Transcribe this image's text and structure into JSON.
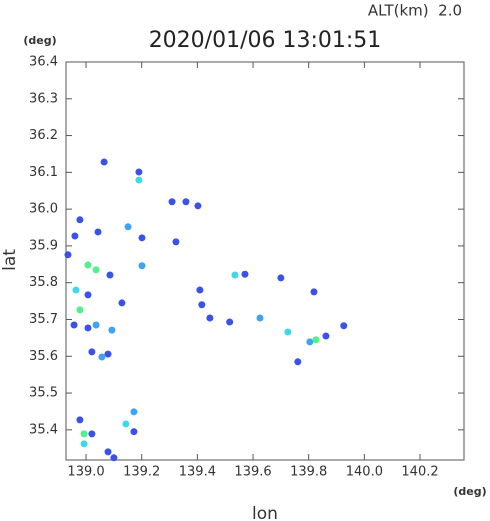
{
  "chart_data": {
    "type": "scatter",
    "title": "2020/01/06 13:01:51",
    "subtitle": "ALT(km)  2.0",
    "x_unit": "(deg)",
    "y_unit": "(deg)",
    "x_label": "lon",
    "y_label": "lat",
    "xlim": [
      138.928,
      140.358
    ],
    "ylim": [
      35.318,
      36.4
    ],
    "xticks": [
      {
        "value": 139.0,
        "label": "139.0"
      },
      139.2,
      139.4,
      139.6,
      139.8,
      {
        "value": 140.0,
        "label": "140.0"
      },
      140.2
    ],
    "yticks": [
      {
        "value": 35.4,
        "label": "35.4"
      },
      35.5,
      35.6,
      35.7,
      35.8,
      35.9,
      {
        "value": 36.0,
        "label": "36.0"
      },
      36.1,
      36.2,
      36.3,
      36.4
    ],
    "x": [
      139.065,
      139.19,
      139.19,
      138.978,
      139.043,
      138.96,
      139.151,
      139.201,
      139.323,
      139.007,
      139.036,
      138.935,
      139.086,
      138.964,
      138.978,
      139.007,
      139.129,
      138.957,
      139.007,
      139.036,
      139.093,
      139.021,
      139.079,
      139.057,
      139.535,
      139.571,
      139.7,
      139.409,
      139.445,
      139.625,
      139.819,
      139.804,
      139.826,
      139.862,
      139.926,
      139.761,
      138.978,
      138.993,
      139.021,
      138.993,
      139.172,
      139.143,
      139.172,
      139.079,
      139.1,
      139.725,
      139.309,
      139.359,
      139.402,
      139.416,
      139.516,
      139.201
    ],
    "values": [
      36.128,
      36.101,
      36.079,
      35.971,
      35.938,
      35.927,
      35.952,
      35.922,
      35.911,
      35.848,
      35.835,
      35.876,
      35.821,
      35.78,
      35.726,
      35.767,
      35.745,
      35.685,
      35.677,
      35.685,
      35.671,
      35.612,
      35.606,
      35.598,
      35.821,
      35.823,
      35.813,
      35.78,
      35.704,
      35.704,
      35.775,
      35.639,
      35.645,
      35.655,
      35.683,
      35.585,
      35.427,
      35.389,
      35.389,
      35.362,
      35.449,
      35.416,
      35.395,
      35.34,
      35.324,
      35.666,
      36.02,
      36.02,
      36.009,
      35.74,
      35.693,
      35.846
    ],
    "colors": [
      "#3a52e8",
      "#3a52e8",
      "#40d8e8",
      "#3a52e8",
      "#3a52e8",
      "#3a52e8",
      "#3fa2f2",
      "#3a52e8",
      "#3a52e8",
      "#50f08a",
      "#50f08a",
      "#3a52e8",
      "#3a52e8",
      "#40d8e8",
      "#50f08a",
      "#3a52e8",
      "#3a52e8",
      "#3a52e8",
      "#3a52e8",
      "#3fa2f2",
      "#3fa2f2",
      "#3a52e8",
      "#3a52e8",
      "#3fa2f2",
      "#40d8e8",
      "#3a52e8",
      "#3a52e8",
      "#3a52e8",
      "#3a52e8",
      "#3fa2f2",
      "#3a52e8",
      "#3fa2f2",
      "#50f08a",
      "#3a52e8",
      "#3a52e8",
      "#3a52e8",
      "#3a52e8",
      "#50f08a",
      "#3a52e8",
      "#40d8e8",
      "#3fa2f2",
      "#40d8e8",
      "#3a52e8",
      "#3a52e8",
      "#3a52e8",
      "#40d8e8",
      "#3a52e8",
      "#3a52e8",
      "#3a52e8",
      "#3a52e8",
      "#3a52e8",
      "#3fa2f2"
    ]
  }
}
